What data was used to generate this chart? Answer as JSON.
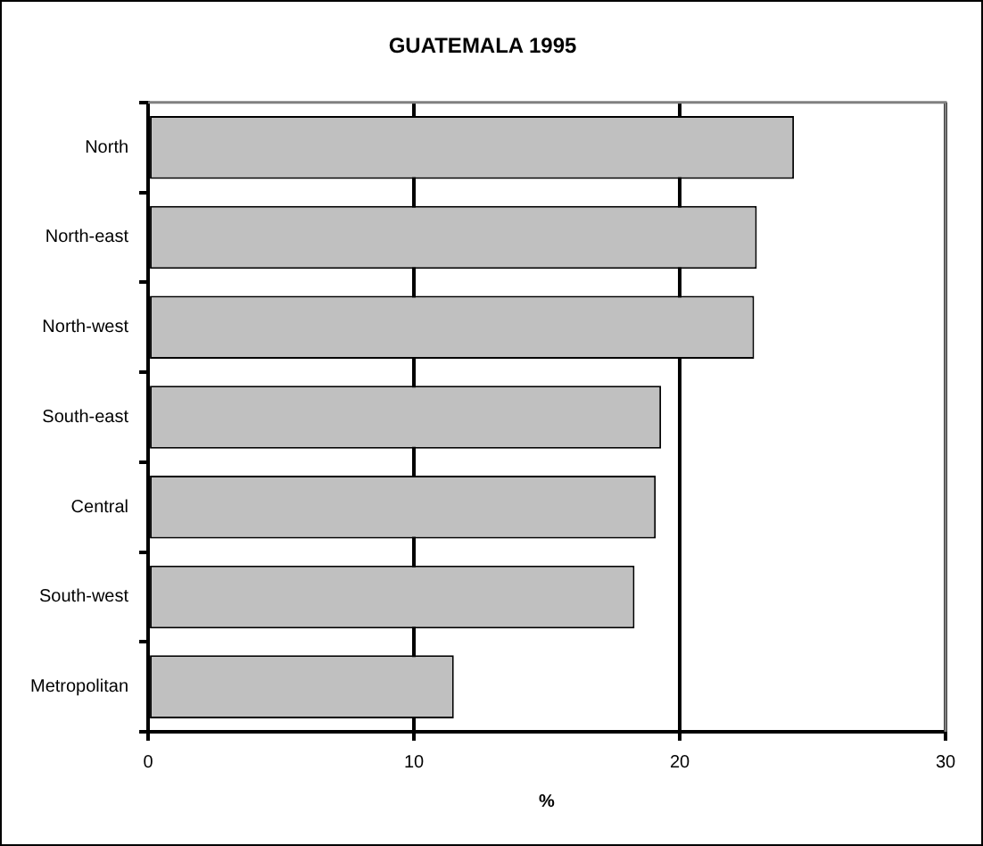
{
  "chart_data": {
    "type": "bar",
    "orientation": "horizontal",
    "title": "GUATEMALA 1995",
    "xlabel": "%",
    "categories": [
      "North",
      "North-east",
      "North-west",
      "South-east",
      "Central",
      "South-west",
      "Metropolitan"
    ],
    "values": [
      24.3,
      22.9,
      22.8,
      19.3,
      19.1,
      18.3,
      11.5
    ],
    "color": "#c0c0c0",
    "xlim": [
      0,
      30
    ],
    "xticks": [
      0,
      10,
      20,
      30
    ],
    "grid": "x",
    "legend": false
  }
}
